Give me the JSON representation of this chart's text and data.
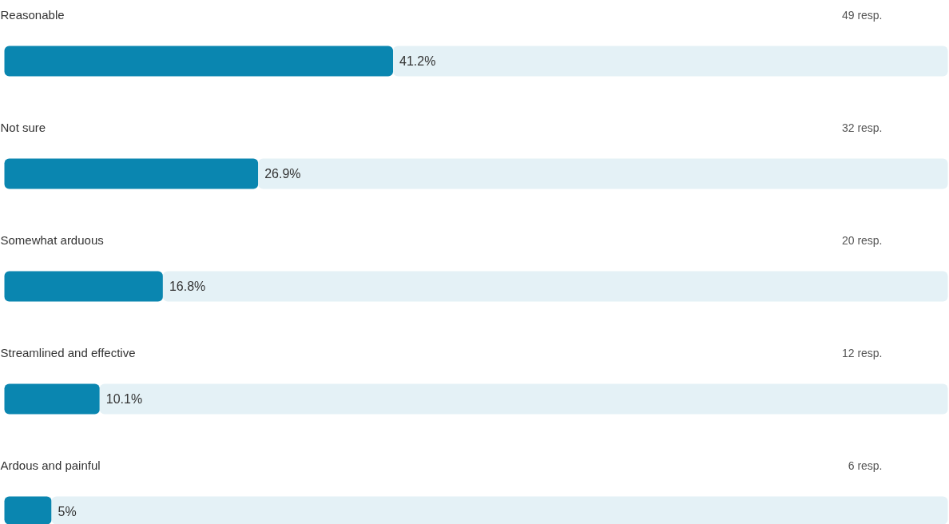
{
  "chart_data": {
    "type": "bar",
    "orientation": "horizontal",
    "stacked": true,
    "tick_labels": false,
    "grid": false,
    "categories": [
      "Reasonable",
      "Not sure",
      "Somewhat arduous",
      "Streamlined and effective",
      "Ardous and painful"
    ],
    "xlim": [
      0,
      100
    ],
    "series": [
      {
        "color": "#0a86b0",
        "values": [
          41.2,
          26.9,
          16.8,
          10.1,
          5
        ],
        "value_labels": [
          "41.2%",
          "26.9%",
          "16.8%",
          "10.1%",
          "5%"
        ]
      },
      {
        "color": "#e4f1f6",
        "values": [
          58.8,
          73.1,
          83.2,
          89.9,
          95
        ]
      }
    ],
    "annotations": [
      "49 resp.",
      "32 resp.",
      "20 resp.",
      "12 resp.",
      "6 resp."
    ]
  }
}
